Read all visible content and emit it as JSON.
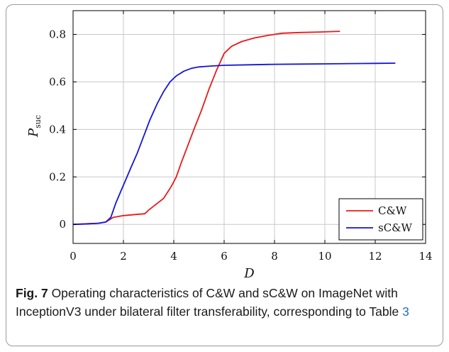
{
  "caption": {
    "label": "Fig. 7",
    "text": " Operating characteristics of C&W and sC&W on ImageNet with InceptionV3 under bilateral filter transferability, corresponding to Table ",
    "table_ref": "3"
  },
  "chart_data": {
    "type": "line",
    "xlabel": "D",
    "ylabel_main": "P",
    "ylabel_sub": "suc",
    "xlim": [
      0,
      14
    ],
    "ylim": [
      -0.08,
      0.9
    ],
    "xticks": [
      0,
      2,
      4,
      6,
      8,
      10,
      12,
      14
    ],
    "yticks": [
      0,
      0.2,
      0.4,
      0.6,
      0.8
    ],
    "xtick_labels": [
      "0",
      "2",
      "4",
      "6",
      "8",
      "10",
      "12",
      "14"
    ],
    "ytick_labels": [
      "0",
      "0.2",
      "0.4",
      "0.6",
      "0.8"
    ],
    "grid": true,
    "legend_position": "bottom-right",
    "series": [
      {
        "name": "C&W",
        "color": "#e8191b",
        "x": [
          0,
          1.0,
          1.3,
          1.6,
          2.0,
          2.5,
          2.85,
          3.0,
          3.3,
          3.6,
          3.9,
          4.1,
          4.3,
          4.55,
          4.8,
          5.1,
          5.4,
          5.7,
          6.0,
          6.3,
          6.7,
          7.2,
          7.7,
          8.3,
          9.0,
          9.8,
          10.6
        ],
        "y": [
          0,
          0.005,
          0.01,
          0.03,
          0.037,
          0.042,
          0.045,
          0.06,
          0.085,
          0.11,
          0.16,
          0.2,
          0.26,
          0.33,
          0.4,
          0.48,
          0.57,
          0.65,
          0.72,
          0.75,
          0.77,
          0.785,
          0.795,
          0.805,
          0.808,
          0.81,
          0.813
        ]
      },
      {
        "name": "sC&W",
        "color": "#1515d6",
        "x": [
          0,
          0.5,
          1.0,
          1.3,
          1.5,
          1.7,
          1.9,
          2.1,
          2.3,
          2.55,
          2.8,
          3.05,
          3.35,
          3.6,
          3.85,
          4.1,
          4.4,
          4.7,
          5.0,
          5.5,
          6.0,
          7.0,
          8.0,
          9.0,
          10.0,
          11.0,
          12.0,
          12.8
        ],
        "y": [
          0,
          0.002,
          0.005,
          0.01,
          0.03,
          0.09,
          0.14,
          0.19,
          0.24,
          0.3,
          0.37,
          0.44,
          0.51,
          0.56,
          0.6,
          0.625,
          0.645,
          0.657,
          0.663,
          0.667,
          0.67,
          0.672,
          0.674,
          0.675,
          0.676,
          0.677,
          0.678,
          0.679
        ]
      }
    ]
  }
}
